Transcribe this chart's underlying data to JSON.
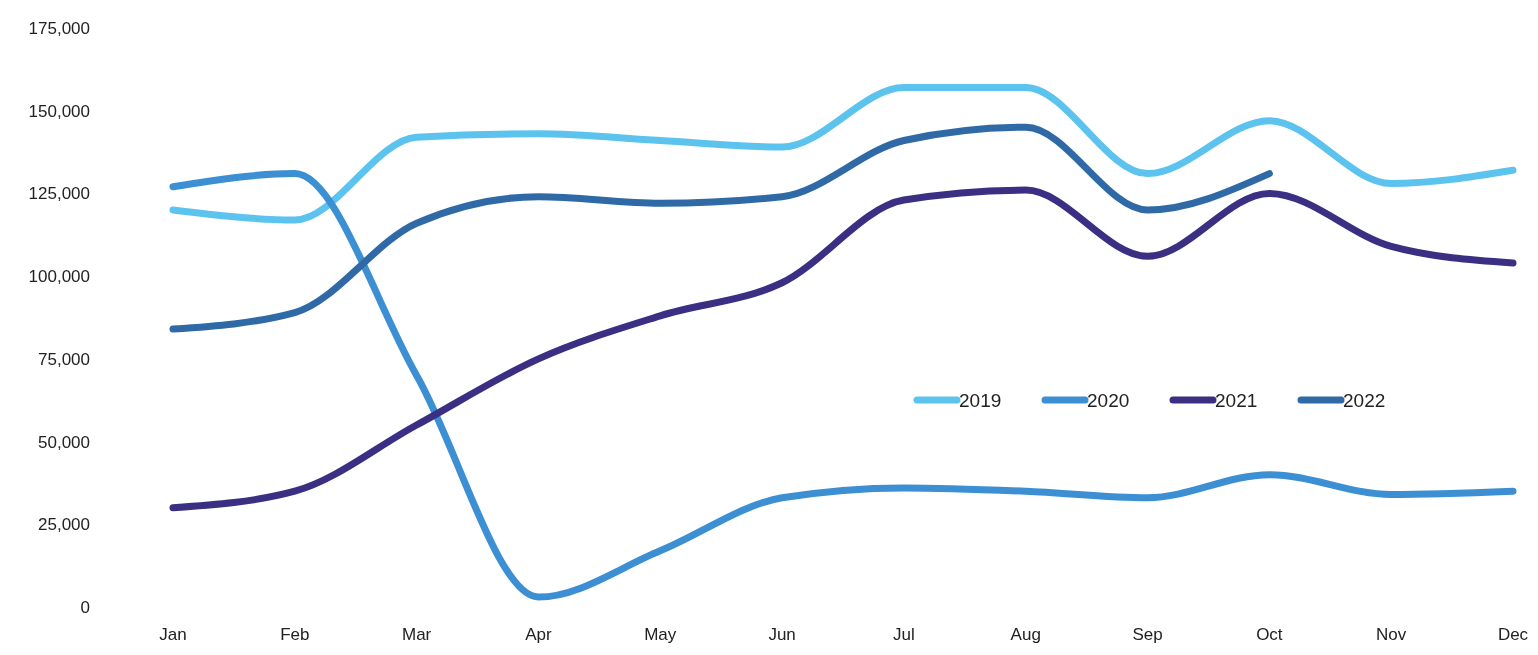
{
  "chart_data": {
    "type": "line",
    "categories": [
      "Jan",
      "Feb",
      "Mar",
      "Apr",
      "May",
      "Jun",
      "Jul",
      "Aug",
      "Sep",
      "Oct",
      "Nov",
      "Dec"
    ],
    "series": [
      {
        "name": "2019",
        "color": "#5cc3ee",
        "values": [
          120000,
          117000,
          142000,
          143000,
          141000,
          139000,
          157000,
          157000,
          131000,
          147000,
          128000,
          132000
        ]
      },
      {
        "name": "2020",
        "color": "#3b8fd2",
        "values": [
          127000,
          131000,
          70000,
          3000,
          17000,
          33000,
          36000,
          35000,
          33000,
          40000,
          34000,
          35000
        ]
      },
      {
        "name": "2021",
        "color": "#3a2f82",
        "values": [
          30000,
          35000,
          55000,
          75000,
          88000,
          98000,
          123000,
          126000,
          106000,
          125000,
          109000,
          104000
        ]
      },
      {
        "name": "2022",
        "color": "#2f6aa6",
        "values": [
          84000,
          89000,
          116000,
          124000,
          122000,
          124000,
          141000,
          145000,
          120000,
          131000,
          null,
          null
        ]
      }
    ],
    "ylim": [
      0,
      175000
    ],
    "yticks": [
      0,
      {
        "value": 25000,
        "label": "25,000"
      },
      {
        "value": 50000,
        "label": "50,000"
      },
      {
        "value": 75000,
        "label": "75,000"
      },
      {
        "value": 100000,
        "label": "100,000"
      },
      {
        "value": 125000,
        "label": "125,000"
      },
      {
        "value": 150000,
        "label": "150,000"
      },
      {
        "value": 175000,
        "label": "175,000"
      }
    ],
    "grid": false,
    "legend": "right",
    "marker": "none",
    "line_style": "solid"
  }
}
